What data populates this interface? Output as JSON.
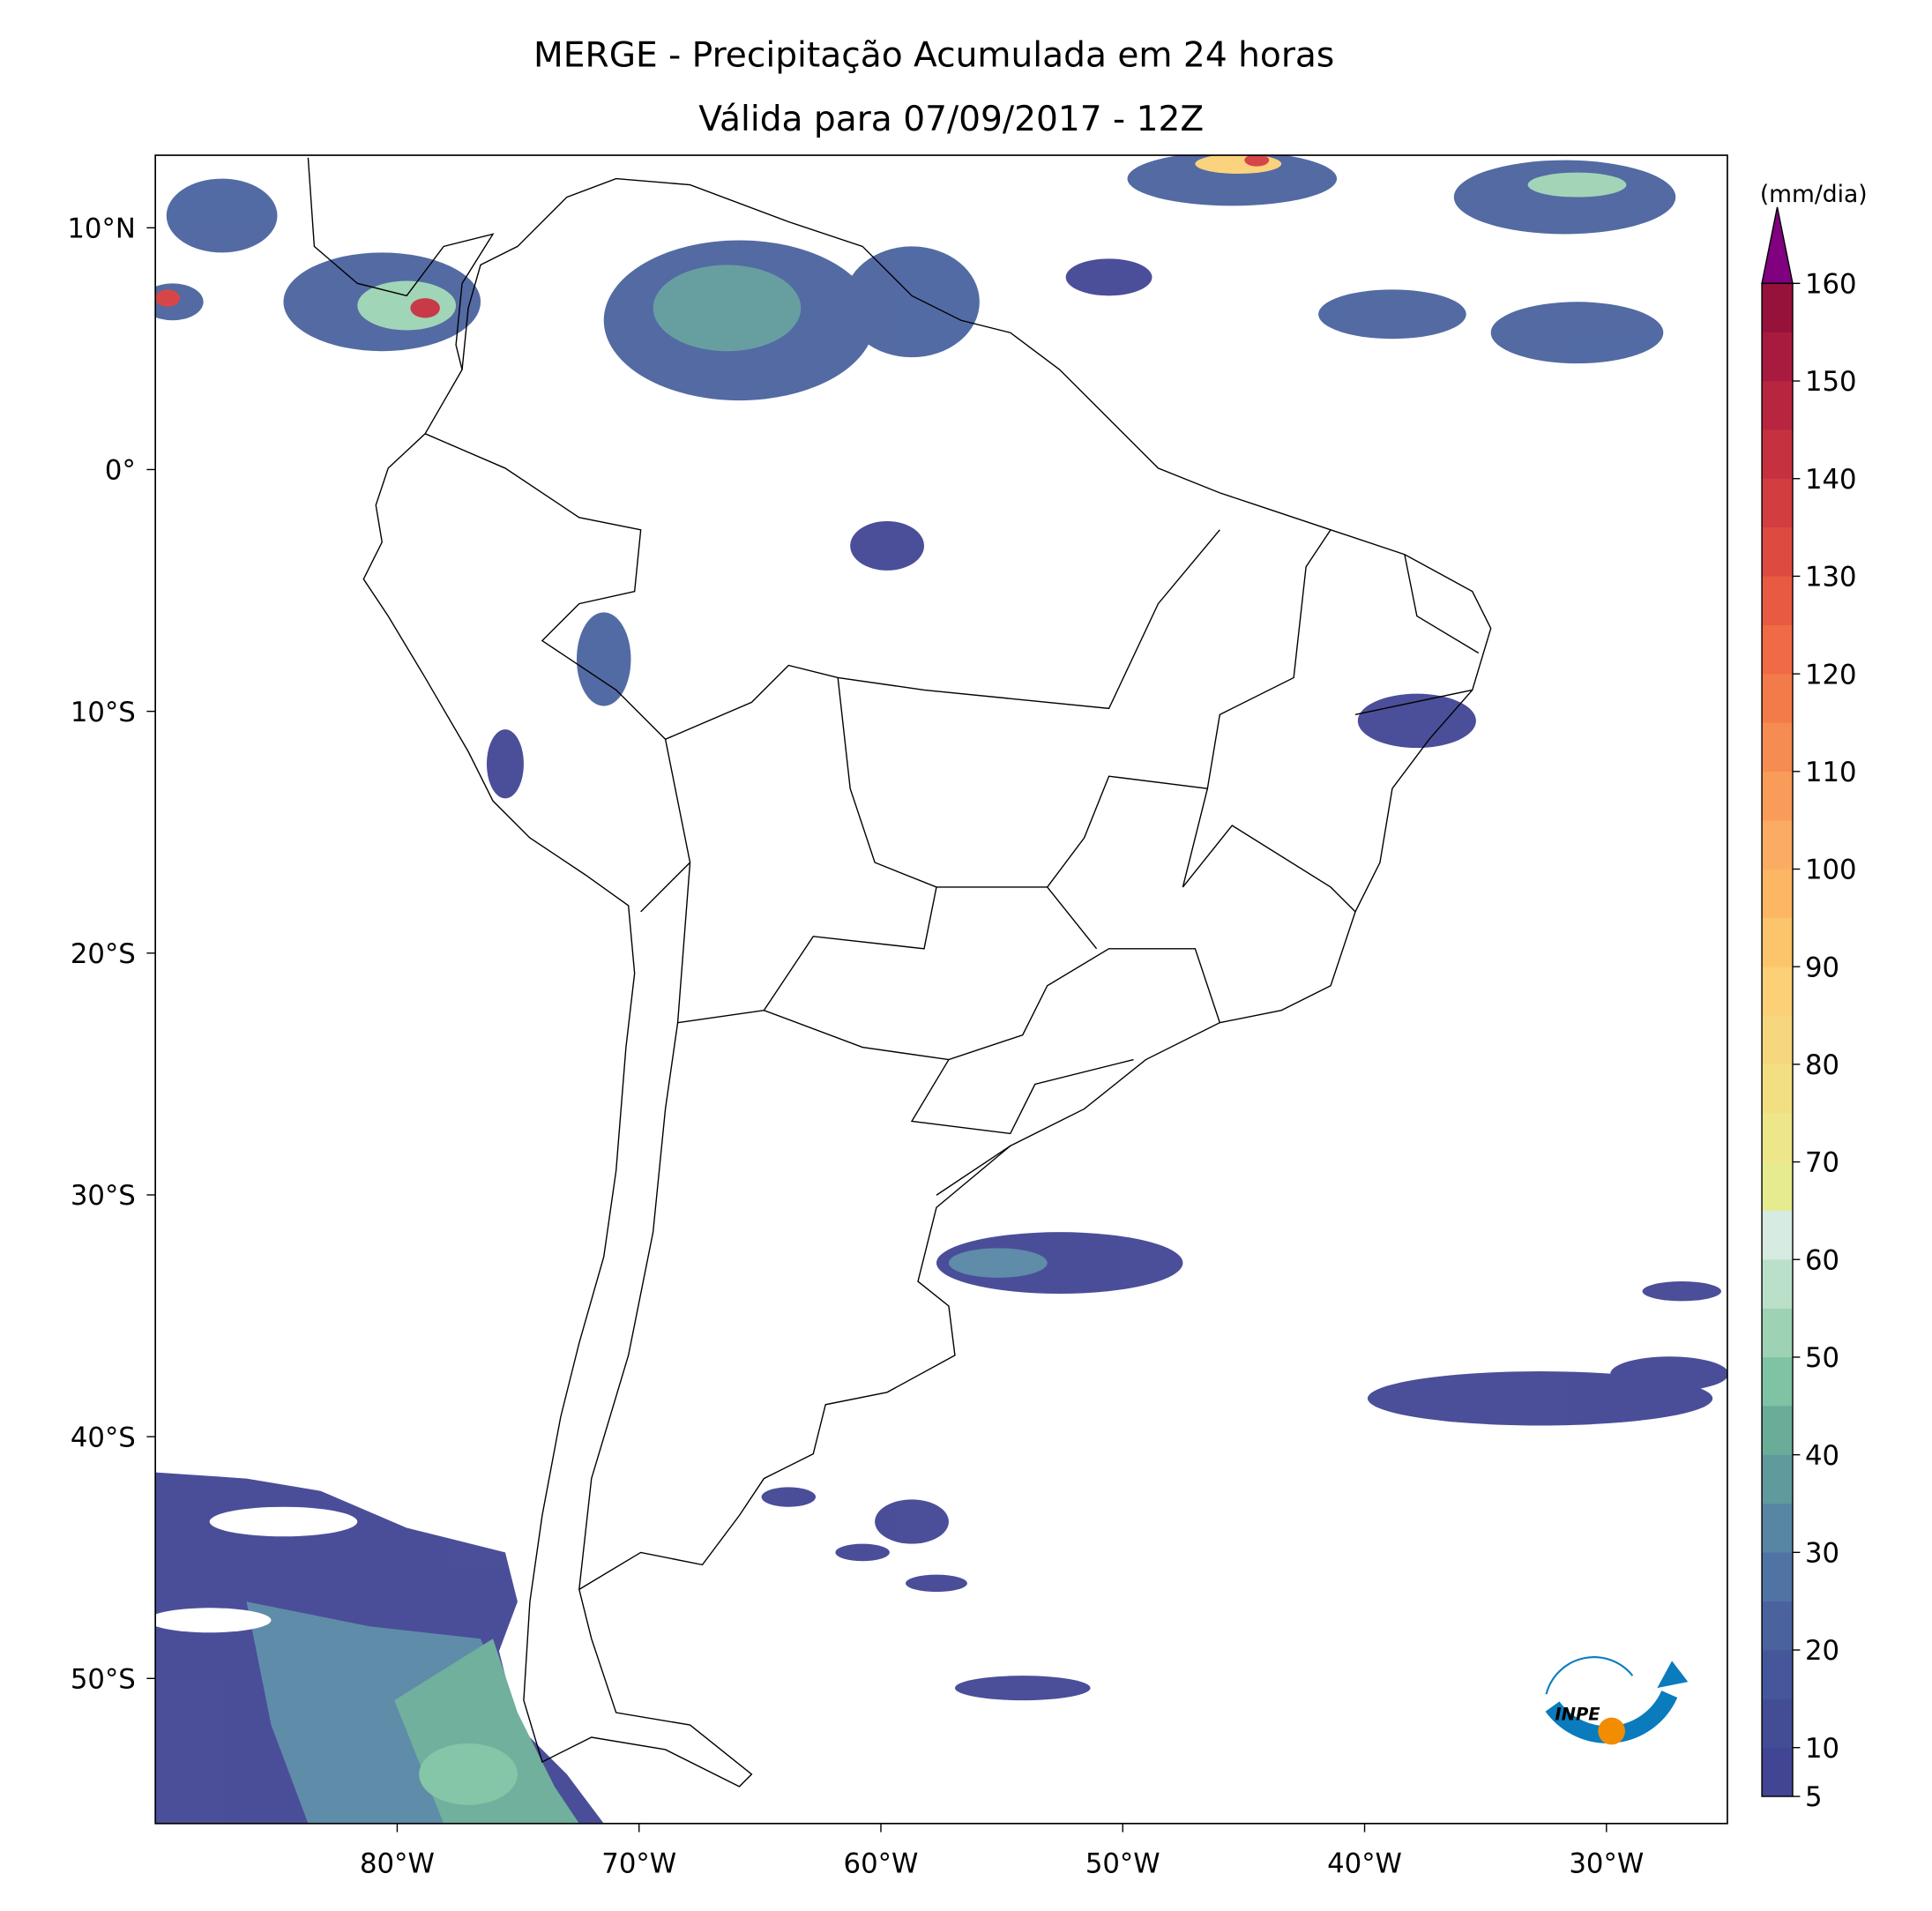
{
  "title": "MERGE - Precipitação Acumulada em 24 horas",
  "subtitle": "Válida para 07/09/2017 - 12Z",
  "map": {
    "lonlim": [
      -90,
      -25
    ],
    "latlim": [
      -56,
      13
    ],
    "lon_ticks": [
      {
        "value": -80,
        "label": "80°W"
      },
      {
        "value": -70,
        "label": "70°W"
      },
      {
        "value": -60,
        "label": "60°W"
      },
      {
        "value": -50,
        "label": "50°W"
      },
      {
        "value": -40,
        "label": "40°W"
      },
      {
        "value": -30,
        "label": "30°W"
      }
    ],
    "lat_ticks": [
      {
        "value": 10,
        "label": "10°N"
      },
      {
        "value": 0,
        "label": "0°"
      },
      {
        "value": -10,
        "label": "10°S"
      },
      {
        "value": -20,
        "label": "20°S"
      },
      {
        "value": -30,
        "label": "30°S"
      },
      {
        "value": -40,
        "label": "40°S"
      },
      {
        "value": -50,
        "label": "50°S"
      }
    ]
  },
  "colorbar": {
    "unit": "(mm/dia)",
    "bounds": [
      5,
      160
    ],
    "extend_color": "#800080",
    "ticks": [
      5,
      10,
      20,
      30,
      40,
      50,
      60,
      70,
      80,
      90,
      100,
      110,
      120,
      130,
      140,
      150,
      160
    ],
    "levels": [
      5,
      10,
      15,
      20,
      25,
      30,
      35,
      40,
      45,
      50,
      55,
      60,
      65,
      70,
      75,
      80,
      85,
      90,
      95,
      100,
      105,
      110,
      115,
      120,
      125,
      130,
      135,
      140,
      145,
      150,
      155,
      160
    ],
    "colors": [
      "#414594",
      "#434d96",
      "#45579a",
      "#4a639f",
      "#5073a5",
      "#5786a5",
      "#5f9a9d",
      "#69ac98",
      "#7ec3a3",
      "#9dd3b4",
      "#bbe0ca",
      "#d6ebe2",
      "#e6eb8f",
      "#ede789",
      "#f2df81",
      "#f7d77d",
      "#fbd077",
      "#fcc46b",
      "#fdb663",
      "#fbac62",
      "#f99c59",
      "#f68c51",
      "#f37b4a",
      "#ef6a45",
      "#e85a42",
      "#df4a40",
      "#d43d3f",
      "#c7303f",
      "#b8253f",
      "#a81b3e",
      "#97123b"
    ]
  },
  "logo": {
    "text": "INPE"
  }
}
